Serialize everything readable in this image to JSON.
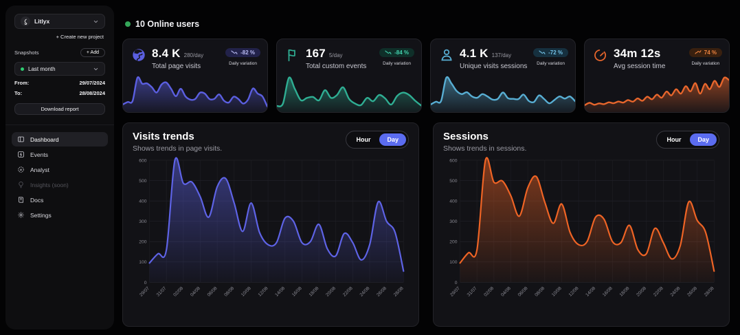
{
  "theme": {
    "background": "#030304",
    "accent_purple": "#5b5fe0",
    "accent_teal": "#2fae93",
    "accent_blue": "#58aed3",
    "accent_orange": "#e8662c",
    "day_pill": "#5b6cf0",
    "online_green": "#34a659"
  },
  "sidebar": {
    "project_name": "Litlyx",
    "create_project_label": "+ Create new project",
    "snapshots_label": "Snapshots",
    "add_button_label": "+ Add",
    "snapshot_selected": "Last month",
    "from_label": "From:",
    "from_value": "29/07/2024",
    "to_label": "To:",
    "to_value": "28/08/2024",
    "download_button": "Download report",
    "nav": [
      {
        "label": "Dashboard",
        "icon": "dashboard-icon",
        "active": true
      },
      {
        "label": "Events",
        "icon": "zap-icon",
        "active": false
      },
      {
        "label": "Analyst",
        "icon": "ai-icon",
        "active": false
      },
      {
        "label": "Insights (soon)",
        "icon": "bulb-icon",
        "disabled": true
      },
      {
        "label": "Docs",
        "icon": "book-icon",
        "active": false
      },
      {
        "label": "Settings",
        "icon": "gear-icon",
        "active": false
      }
    ]
  },
  "header": {
    "online_users": "10 Online users"
  },
  "stat_cards": [
    {
      "icon": "globe-icon",
      "value": "8.4 K",
      "per_day": "280/day",
      "label": "Total page visits",
      "badge": "-82 %",
      "badge_trend": "down",
      "badge_note": "Daily variation",
      "color": "#5b5fe0",
      "sparkline": [
        95,
        140,
        160,
        600,
        487,
        493,
        420,
        320,
        470,
        510,
        390,
        250,
        390,
        245,
        185,
        195,
        315,
        300,
        195,
        200,
        285,
        165,
        130,
        240,
        195,
        110,
        185,
        395,
        300,
        245,
        55
      ]
    },
    {
      "icon": "flag-icon",
      "value": "167",
      "per_day": "5/day",
      "label": "Total custom events",
      "badge": "-84 %",
      "badge_trend": "down",
      "badge_note": "Daily variation",
      "color": "#2fae93",
      "sparkline": [
        35,
        60,
        330,
        210,
        95,
        120,
        130,
        95,
        200,
        120,
        150,
        230,
        110,
        60,
        45,
        120,
        85,
        150,
        115,
        50,
        140,
        175,
        150,
        90,
        40
      ]
    },
    {
      "icon": "user-icon",
      "value": "4.1 K",
      "per_day": "137/day",
      "label": "Unique visits sessions",
      "badge": "-72 %",
      "badge_trend": "down",
      "badge_note": "Daily variation",
      "color": "#58aed3",
      "sparkline": [
        95,
        145,
        160,
        600,
        492,
        350,
        290,
        325,
        245,
        220,
        290,
        245,
        185,
        200,
        320,
        210,
        200,
        195,
        280,
        160,
        140,
        265,
        195,
        115,
        180,
        245,
        205,
        245,
        155
      ]
    },
    {
      "icon": "timer-icon",
      "value": "34m 12s",
      "per_day": "",
      "label": "Avg session time",
      "badge": "74 %",
      "badge_trend": "up",
      "badge_note": "Daily variation",
      "color": "#e8662c",
      "sparkline": [
        55,
        85,
        60,
        78,
        68,
        92,
        80,
        102,
        88,
        122,
        100,
        142,
        112,
        165,
        132,
        192,
        152,
        232,
        182,
        262,
        205,
        302,
        235,
        342,
        205,
        332,
        262,
        372,
        292,
        412,
        382
      ]
    }
  ],
  "chart_data": [
    {
      "type": "area",
      "title": "Visits trends",
      "subtitle": "Shows trends in page visits.",
      "toggle": [
        "Hour",
        "Day"
      ],
      "active_toggle": "Day",
      "color": "#5e63e6",
      "ylim": [
        0,
        600
      ],
      "yticks": [
        0,
        100,
        200,
        300,
        400,
        500,
        600
      ],
      "x": [
        "29/07",
        "30/07",
        "31/07",
        "01/08",
        "02/08",
        "03/08",
        "04/08",
        "05/08",
        "06/08",
        "07/08",
        "08/08",
        "09/08",
        "10/08",
        "11/08",
        "12/08",
        "13/08",
        "14/08",
        "15/08",
        "16/08",
        "17/08",
        "18/08",
        "19/08",
        "20/08",
        "21/08",
        "22/08",
        "23/08",
        "24/08",
        "25/08",
        "26/08",
        "27/08",
        "28/08"
      ],
      "xtick_labels": [
        "29/07",
        "31/07",
        "02/08",
        "04/08",
        "06/08",
        "08/08",
        "10/08",
        "12/08",
        "14/08",
        "16/08",
        "18/08",
        "20/08",
        "22/08",
        "24/08",
        "26/08",
        "28/08"
      ],
      "values": [
        95,
        140,
        160,
        600,
        487,
        493,
        420,
        320,
        470,
        510,
        390,
        250,
        390,
        245,
        185,
        195,
        315,
        300,
        195,
        200,
        285,
        165,
        130,
        240,
        195,
        110,
        185,
        395,
        300,
        245,
        55
      ],
      "grid": true,
      "legend": "none"
    },
    {
      "type": "area",
      "title": "Sessions",
      "subtitle": "Shows trends in sessions.",
      "toggle": [
        "Hour",
        "Day"
      ],
      "active_toggle": "Day",
      "color": "#ef6425",
      "ylim": [
        0,
        600
      ],
      "yticks": [
        0,
        100,
        200,
        300,
        400,
        500,
        600
      ],
      "x": [
        "29/07",
        "30/07",
        "31/07",
        "01/08",
        "02/08",
        "03/08",
        "04/08",
        "05/08",
        "06/08",
        "07/08",
        "08/08",
        "09/08",
        "10/08",
        "11/08",
        "12/08",
        "13/08",
        "14/08",
        "15/08",
        "16/08",
        "17/08",
        "18/08",
        "19/08",
        "20/08",
        "21/08",
        "22/08",
        "23/08",
        "24/08",
        "25/08",
        "26/08",
        "27/08",
        "28/08"
      ],
      "xtick_labels": [
        "29/07",
        "31/07",
        "02/08",
        "04/08",
        "06/08",
        "08/08",
        "10/08",
        "12/08",
        "14/08",
        "16/08",
        "18/08",
        "20/08",
        "22/08",
        "24/08",
        "26/08",
        "28/08"
      ],
      "values": [
        95,
        145,
        160,
        600,
        492,
        498,
        425,
        325,
        465,
        520,
        395,
        290,
        385,
        245,
        185,
        200,
        320,
        310,
        200,
        195,
        280,
        160,
        140,
        265,
        195,
        115,
        180,
        395,
        305,
        245,
        55
      ],
      "grid": true,
      "legend": "none"
    }
  ]
}
